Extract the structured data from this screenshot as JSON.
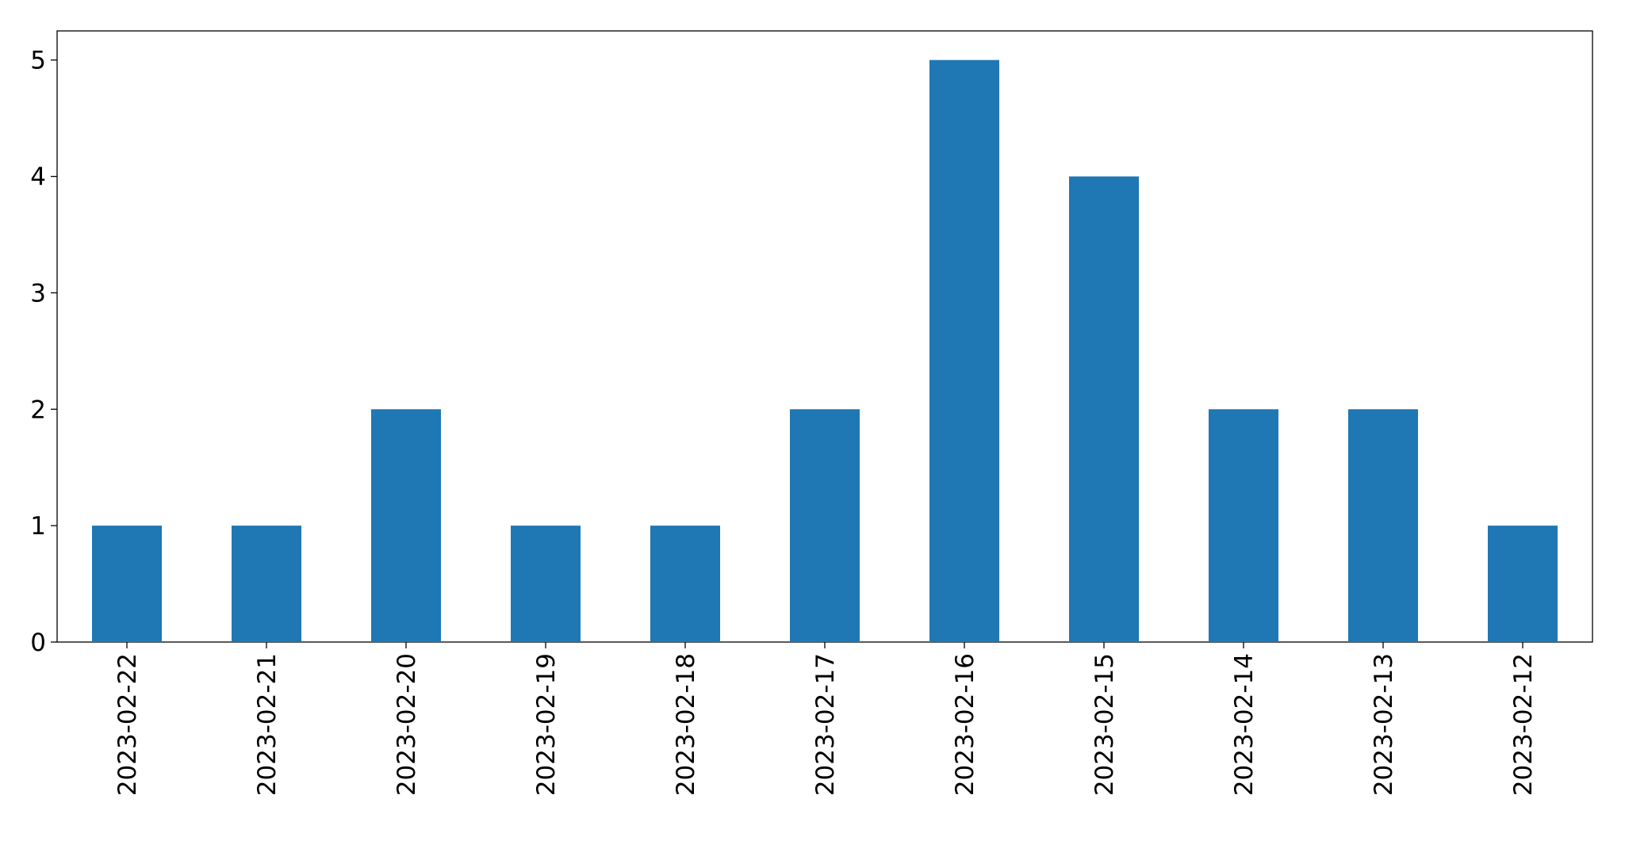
{
  "chart_data": {
    "type": "bar",
    "categories": [
      "2023-02-22",
      "2023-02-21",
      "2023-02-20",
      "2023-02-19",
      "2023-02-18",
      "2023-02-17",
      "2023-02-16",
      "2023-02-15",
      "2023-02-14",
      "2023-02-13",
      "2023-02-12"
    ],
    "values": [
      1,
      1,
      2,
      1,
      1,
      2,
      5,
      4,
      2,
      2,
      1
    ],
    "color": "#1f77b4",
    "ylim": [
      0,
      5.25
    ],
    "yticks": [
      0,
      1,
      2,
      3,
      4,
      5
    ],
    "grid": false
  }
}
